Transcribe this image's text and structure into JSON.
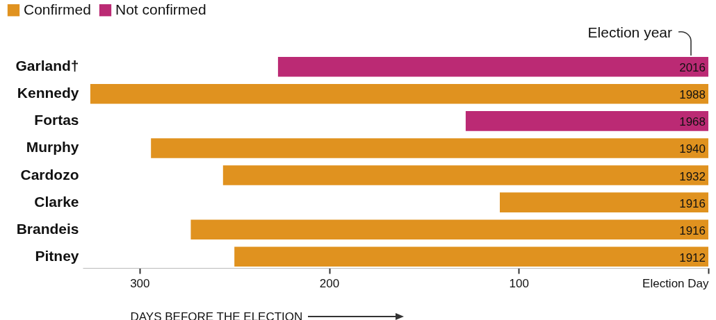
{
  "chart_data": {
    "type": "bar",
    "orientation": "horizontal",
    "xlabel": "DAYS BEFORE THE ELECTION",
    "categories": [
      "Garland†",
      "Kennedy",
      "Fortas",
      "Murphy",
      "Cardozo",
      "Clarke",
      "Brandeis",
      "Pitney"
    ],
    "series": [
      {
        "name": "Confirmed",
        "color": "#e0921f",
        "values": [
          null,
          326,
          null,
          294,
          256,
          110,
          273,
          250
        ]
      },
      {
        "name": "Not confirmed",
        "color": "#bb2a74",
        "values": [
          227,
          null,
          128,
          null,
          null,
          null,
          null,
          null
        ]
      }
    ],
    "xlim": [
      330,
      0
    ],
    "xticks": [
      300,
      200,
      100,
      {
        "value": 0,
        "label": "Election Day"
      }
    ],
    "grid": false,
    "legend": "top left",
    "annotations": [
      "Election year",
      {
        "text": "2016",
        "y": "Garland†"
      },
      {
        "text": "1988",
        "y": "Kennedy"
      },
      {
        "text": "1968",
        "y": "Fortas"
      },
      {
        "text": "1940",
        "y": "Murphy"
      },
      {
        "text": "1932",
        "y": "Cardozo"
      },
      {
        "text": "1916",
        "y": "Clarke"
      },
      {
        "text": "1916",
        "y": "Brandeis"
      },
      {
        "text": "1912",
        "y": "Pitney"
      }
    ]
  }
}
